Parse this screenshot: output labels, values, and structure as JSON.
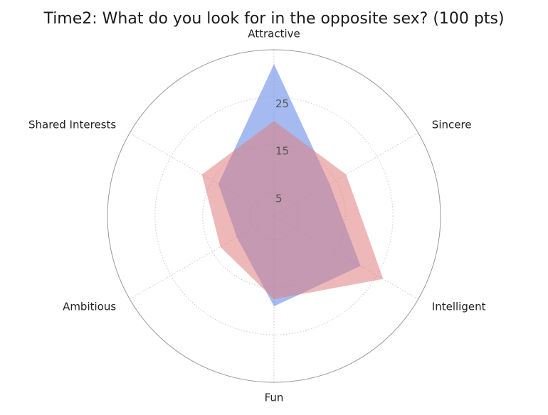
{
  "chart_data": {
    "type": "radar",
    "title": "Time2: What do you look for in the opposite sex? (100 pts)",
    "axes": [
      "Attractive",
      "Sincere",
      "Intelligent",
      "Fun",
      "Ambitious",
      "Shared Interests"
    ],
    "radial_ticks": [
      "5",
      "15",
      "25"
    ],
    "radial_tick_values": [
      5,
      15,
      25
    ],
    "rlim": [
      0,
      35
    ],
    "grid": true,
    "series": [
      {
        "values": [
          32.0,
          13.5,
          21.0,
          19.0,
          9.0,
          13.5
        ],
        "color": "#6d8fe6"
      },
      {
        "values": [
          20.0,
          17.5,
          26.5,
          17.5,
          13.0,
          17.5
        ],
        "color": "#e07d7d"
      }
    ]
  }
}
